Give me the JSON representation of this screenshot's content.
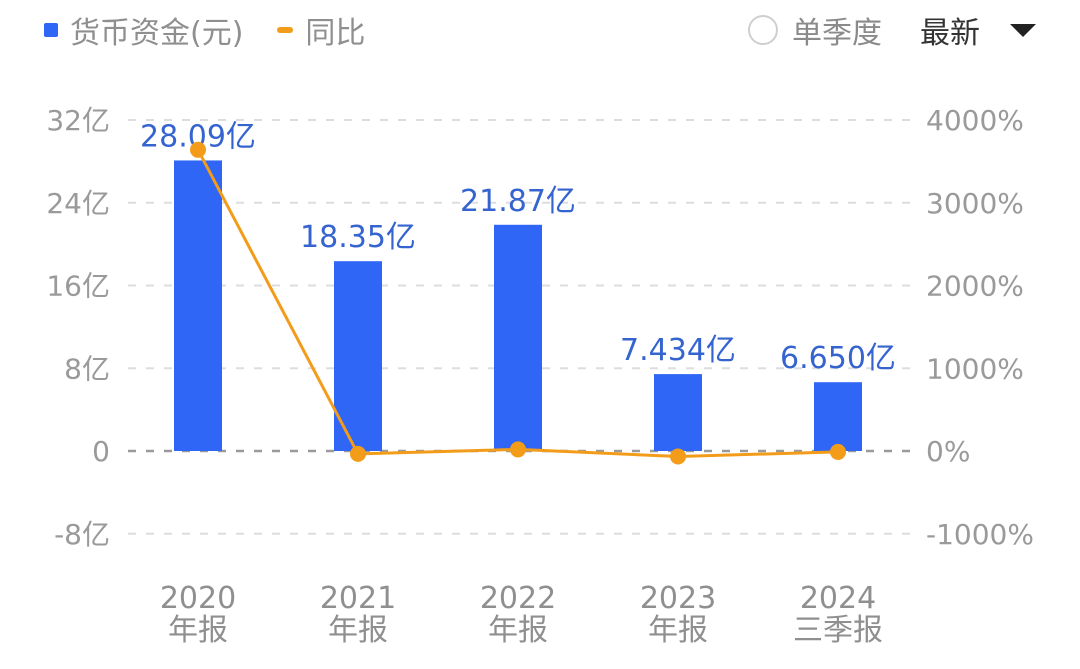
{
  "legend": {
    "bar_label": "货币资金(元)",
    "line_label": "同比"
  },
  "controls": {
    "single_quarter_label": "单季度",
    "single_quarter_checked": false,
    "period_select": "最新"
  },
  "colors": {
    "bar": "#2f66f5",
    "line": "#f39c1a",
    "data_label": "#3564d0",
    "axis_text": "#9a9a9a",
    "grid": "#dddddd"
  },
  "chart_data": {
    "type": "bar+line",
    "title": "",
    "categories": [
      "2020 年报",
      "2021 年报",
      "2022 年报",
      "2023 年报",
      "2024 三季报"
    ],
    "category_lines": [
      [
        "2020",
        "年报"
      ],
      [
        "2021",
        "年报"
      ],
      [
        "2022",
        "年报"
      ],
      [
        "2023",
        "年报"
      ],
      [
        "2024",
        "三季报"
      ]
    ],
    "series": [
      {
        "name": "货币资金(元)",
        "type": "bar",
        "axis": "left",
        "unit": "亿",
        "values": [
          28.09,
          18.35,
          21.87,
          7.434,
          6.65
        ],
        "labels": [
          "28.09亿",
          "18.35亿",
          "21.87亿",
          "7.434亿",
          "6.650亿"
        ]
      },
      {
        "name": "同比",
        "type": "line",
        "axis": "right",
        "unit": "%",
        "values": [
          3640,
          -35,
          19,
          -66,
          -11
        ]
      }
    ],
    "left_axis": {
      "ticks": [
        "32亿",
        "24亿",
        "16亿",
        "8亿",
        "0",
        "-8亿"
      ],
      "ylim": [
        -8,
        32
      ]
    },
    "right_axis": {
      "ticks": [
        "4000%",
        "3000%",
        "2000%",
        "1000%",
        "0%",
        "-1000%"
      ],
      "ylim": [
        -1000,
        4000
      ]
    },
    "grid": true,
    "legend_position": "top-left"
  }
}
